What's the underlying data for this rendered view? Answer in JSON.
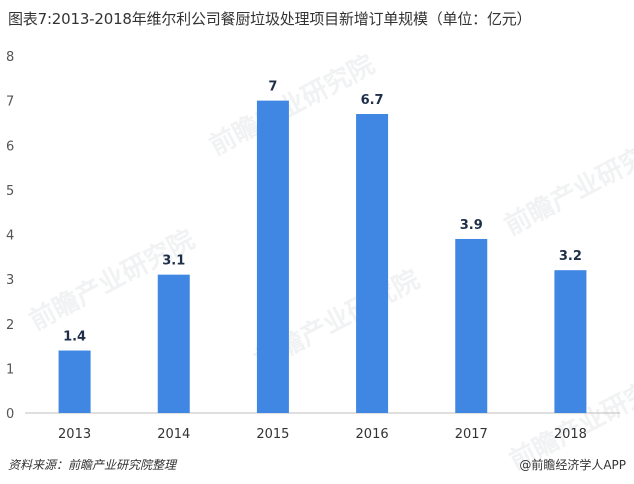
{
  "title": "图表7:2013-2018年维尔利公司餐厨垃圾处理项目新增订单规模（单位：亿元）",
  "source": "资料来源：前瞻产业研究院整理",
  "brand": "@前瞻经济学人APP",
  "watermark_text": "前瞻产业研究院",
  "colors": {
    "bar": "#3f87e3",
    "axis": "#bfbfbf"
  },
  "chart_data": {
    "type": "bar",
    "title": "图表7:2013-2018年维尔利公司餐厨垃圾处理项目新增订单规模（单位：亿元）",
    "xlabel": "",
    "ylabel": "",
    "categories": [
      "2013",
      "2014",
      "2015",
      "2016",
      "2017",
      "2018"
    ],
    "values": [
      1.4,
      3.1,
      7,
      6.7,
      3.9,
      3.2
    ],
    "data_labels": [
      "1.4",
      "3.1",
      "7",
      "6.7",
      "3.9",
      "3.2"
    ],
    "y_ticks": [
      "0",
      "1",
      "2",
      "3",
      "4",
      "5",
      "6",
      "7",
      "8"
    ],
    "ylim": [
      0,
      8
    ],
    "grid": false,
    "legend": "none"
  }
}
